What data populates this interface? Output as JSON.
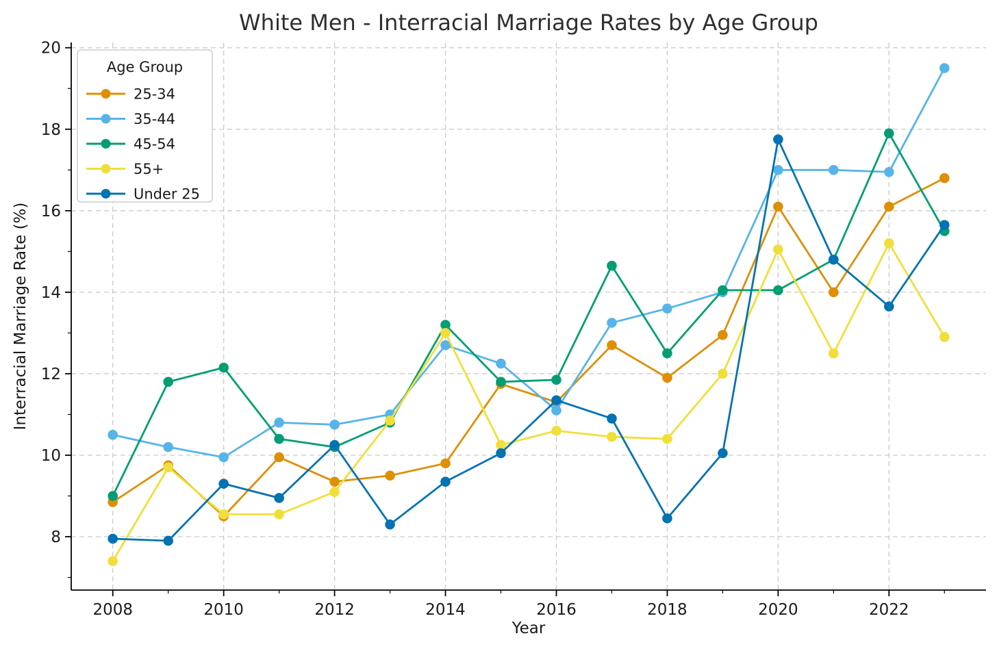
{
  "chart_data": {
    "type": "line",
    "title": "White Men - Interracial Marriage Rates by Age Group",
    "xlabel": "Year",
    "ylabel": "Interracial Marriage Rate (%)",
    "legend_title": "Age Group",
    "legend_position": "upper left",
    "grid": "dashed-major-both",
    "x": [
      2008,
      2009,
      2010,
      2011,
      2012,
      2013,
      2014,
      2015,
      2016,
      2017,
      2018,
      2019,
      2020,
      2021,
      2022,
      2023
    ],
    "xlim": [
      2007.25,
      2023.75
    ],
    "ylim": [
      6.69,
      20.13
    ],
    "xticks_major": [
      2008,
      2010,
      2012,
      2014,
      2016,
      2018,
      2020,
      2022
    ],
    "xticks_minor": [
      2009,
      2011,
      2013,
      2015,
      2017,
      2019,
      2021,
      2023
    ],
    "yticks_major": [
      8,
      10,
      12,
      14,
      16,
      18,
      20
    ],
    "yticks_minor": [
      7,
      9,
      11,
      13,
      15,
      17,
      19
    ],
    "series": [
      {
        "name": "25-34",
        "color": "#DE8F05",
        "values": [
          8.85,
          9.75,
          8.5,
          9.95,
          9.35,
          9.5,
          9.8,
          11.75,
          11.3,
          12.7,
          11.9,
          12.95,
          16.1,
          14.0,
          16.1,
          16.8
        ]
      },
      {
        "name": "35-44",
        "color": "#56B4E9",
        "values": [
          10.5,
          10.2,
          9.95,
          10.8,
          10.75,
          11.0,
          12.7,
          12.25,
          11.1,
          13.25,
          13.6,
          14.0,
          17.0,
          17.0,
          16.95,
          19.5
        ]
      },
      {
        "name": "45-54",
        "color": "#029E73",
        "values": [
          9.0,
          11.8,
          12.15,
          10.4,
          10.2,
          10.8,
          13.2,
          11.8,
          11.85,
          14.65,
          12.5,
          14.05,
          14.05,
          14.8,
          17.9,
          15.5
        ]
      },
      {
        "name": "55+",
        "color": "#F0DF3A",
        "values": [
          7.4,
          9.7,
          8.55,
          8.55,
          9.1,
          10.85,
          13.0,
          10.25,
          10.6,
          10.45,
          10.4,
          12.0,
          15.05,
          12.5,
          15.2,
          12.9
        ]
      },
      {
        "name": "Under 25",
        "color": "#0173B2",
        "values": [
          7.95,
          7.9,
          9.3,
          8.95,
          10.25,
          8.3,
          9.35,
          10.05,
          11.35,
          10.9,
          8.45,
          10.05,
          17.75,
          14.8,
          13.65,
          15.65
        ]
      }
    ],
    "style": {
      "grid_color": "#c9c9c9",
      "spine_color": "#000000",
      "tick_label_color": "#1a1a1a",
      "legend_border_color": "#cccccc",
      "legend_bg_color": "#ffffff"
    }
  }
}
